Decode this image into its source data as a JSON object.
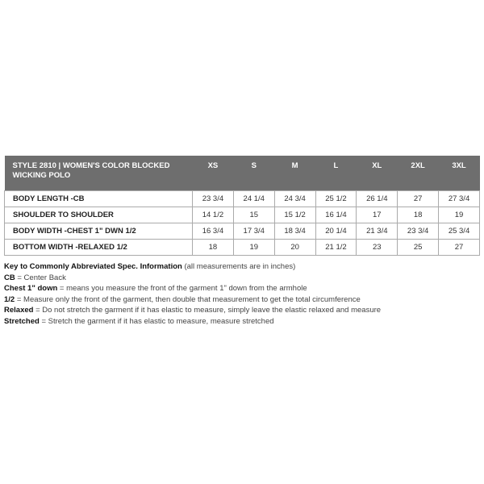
{
  "table": {
    "title": "STYLE 2810 | WOMEN'S COLOR BLOCKED WICKING POLO",
    "sizes": [
      "XS",
      "S",
      "M",
      "L",
      "XL",
      "2XL",
      "3XL"
    ],
    "rows": [
      {
        "label": "BODY LENGTH -CB",
        "values": [
          "23 3/4",
          "24 1/4",
          "24 3/4",
          "25 1/2",
          "26 1/4",
          "27",
          "27 3/4"
        ]
      },
      {
        "label": "SHOULDER TO SHOULDER",
        "values": [
          "14 1/2",
          "15",
          "15 1/2",
          "16 1/4",
          "17",
          "18",
          "19"
        ]
      },
      {
        "label": "BODY WIDTH -CHEST 1\" DWN 1/2",
        "values": [
          "16 3/4",
          "17 3/4",
          "18 3/4",
          "20 1/4",
          "21 3/4",
          "23 3/4",
          "25 3/4"
        ]
      },
      {
        "label": "BOTTOM WIDTH -RELAXED 1/2",
        "values": [
          "18",
          "19",
          "20",
          "21 1/2",
          "23",
          "25",
          "27"
        ]
      }
    ]
  },
  "key": {
    "title": "Key to Commonly Abbreviated Spec. Information",
    "note": "(all measurements are in inches)",
    "items": [
      {
        "term": "CB",
        "def": "= Center Back"
      },
      {
        "term": "Chest 1\" down",
        "def": "= means you measure the front of the garment 1\" down from the armhole"
      },
      {
        "term": "1/2",
        "def": "= Measure only the front of the garment, then double that measurement to get the total circumference"
      },
      {
        "term": "Relaxed",
        "def": "= Do not stretch the garment if it has elastic to measure, simply leave the elastic relaxed and measure"
      },
      {
        "term": "Stretched",
        "def": "= Stretch the garment if it has elastic to measure, measure stretched"
      }
    ]
  }
}
